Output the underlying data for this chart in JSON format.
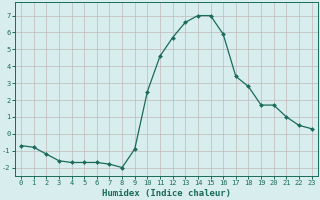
{
  "x": [
    0,
    1,
    2,
    3,
    4,
    5,
    6,
    7,
    8,
    9,
    10,
    11,
    12,
    13,
    14,
    15,
    16,
    17,
    18,
    19,
    20,
    21,
    22,
    23
  ],
  "y": [
    -0.7,
    -0.8,
    -1.2,
    -1.6,
    -1.7,
    -1.7,
    -1.7,
    -1.8,
    -2.0,
    -0.9,
    2.5,
    4.6,
    5.7,
    6.6,
    7.0,
    7.0,
    5.9,
    3.4,
    2.8,
    1.7,
    1.7,
    1.0,
    0.5,
    0.3
  ],
  "line_color": "#1a6b5a",
  "marker": "D",
  "marker_size": 2.0,
  "bg_color": "#d8eeee",
  "grid_color": "#c0b8b8",
  "xlabel": "Humidex (Indice chaleur)",
  "xlim": [
    -0.5,
    23.5
  ],
  "ylim": [
    -2.5,
    7.8
  ],
  "yticks": [
    -2,
    -1,
    0,
    1,
    2,
    3,
    4,
    5,
    6,
    7
  ],
  "xticks": [
    0,
    1,
    2,
    3,
    4,
    5,
    6,
    7,
    8,
    9,
    10,
    11,
    12,
    13,
    14,
    15,
    16,
    17,
    18,
    19,
    20,
    21,
    22,
    23
  ],
  "tick_label_fontsize": 5.0,
  "xlabel_fontsize": 6.5
}
